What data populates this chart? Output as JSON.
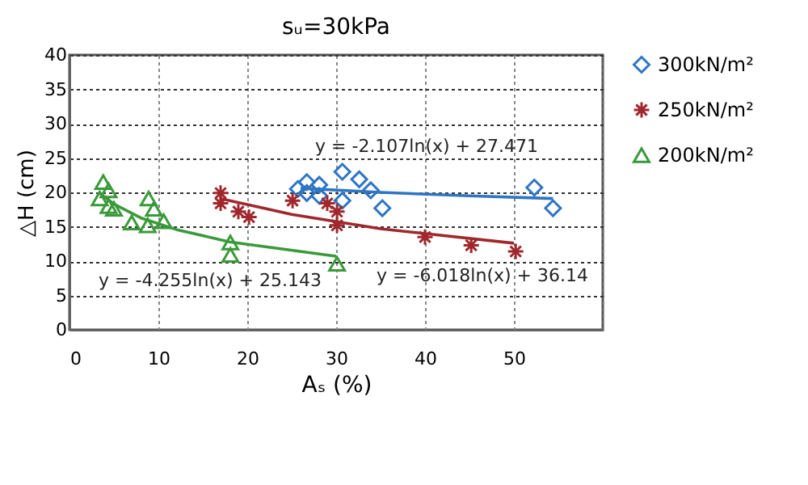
{
  "chart_data": {
    "type": "scatter",
    "title": "sᵤ=30kPa",
    "xlabel": "Aₛ (%)",
    "ylabel": "△H (cm)",
    "xlim": [
      0,
      60
    ],
    "xticks": [
      0,
      10,
      20,
      30,
      40,
      50,
      {
        "value": 60,
        "label": null
      }
    ],
    "ylim": [
      0,
      40
    ],
    "yticks": [
      0,
      5,
      10,
      15,
      20,
      25,
      30,
      35,
      40
    ],
    "grid": true,
    "legend": "right",
    "series": [
      {
        "name": "300kN/m²",
        "type": "scatter",
        "marker": "diamond",
        "color": "#2e75c4",
        "x": [
          25.7,
          26.7,
          26.7,
          28.1,
          28.1,
          30.7,
          30.7,
          32.6,
          33.9,
          35.2,
          52.3,
          54.4
        ],
        "values": [
          20.5,
          21.5,
          19.9,
          21.1,
          19.5,
          23,
          18.8,
          21.9,
          20.3,
          17.7,
          20.7,
          17.7
        ]
      },
      {
        "name": "250kN/m²",
        "type": "scatter",
        "marker": "cross",
        "color": "#a0282d",
        "x": [
          17,
          17,
          19,
          20.2,
          25.1,
          29,
          30.1,
          30.1,
          40,
          45.2,
          50.2
        ],
        "values": [
          19.9,
          18.4,
          17.2,
          16.4,
          18.8,
          18.4,
          17.2,
          15.2,
          13.5,
          12.3,
          11.4
        ]
      },
      {
        "name": "200kN/m²",
        "type": "scatter",
        "marker": "triangle",
        "color": "#3a9a3a",
        "x": [
          3.4,
          3.8,
          4.4,
          4.4,
          5,
          7,
          8.9,
          8.8,
          9.5,
          10.6,
          18.1,
          18.1,
          30.1
        ],
        "values": [
          19.1,
          21.5,
          20.3,
          18,
          17.6,
          15.6,
          19.1,
          15.2,
          17.6,
          15.8,
          12.7,
          10.9,
          9.6
        ]
      },
      {
        "type": "line",
        "color": "#2e75c4",
        "x": [
          26,
          35,
          45,
          54.4
        ],
        "values": [
          20.6,
          20,
          19.5,
          19.1
        ]
      },
      {
        "type": "line",
        "color": "#a0282d",
        "x": [
          17,
          25,
          35,
          50
        ],
        "values": [
          19.1,
          16.8,
          14.7,
          12.6
        ]
      },
      {
        "type": "line",
        "color": "#3a9a3a",
        "x": [
          3.4,
          5,
          8,
          12,
          18,
          30
        ],
        "values": [
          19.9,
          18.3,
          16.3,
          14.6,
          12.8,
          10.7
        ]
      }
    ],
    "annotations": [
      "y = -2.107ln(x) + 27.471",
      "y = -6.018ln(x) + 36.14",
      "y = -4.255ln(x) + 25.143"
    ]
  }
}
